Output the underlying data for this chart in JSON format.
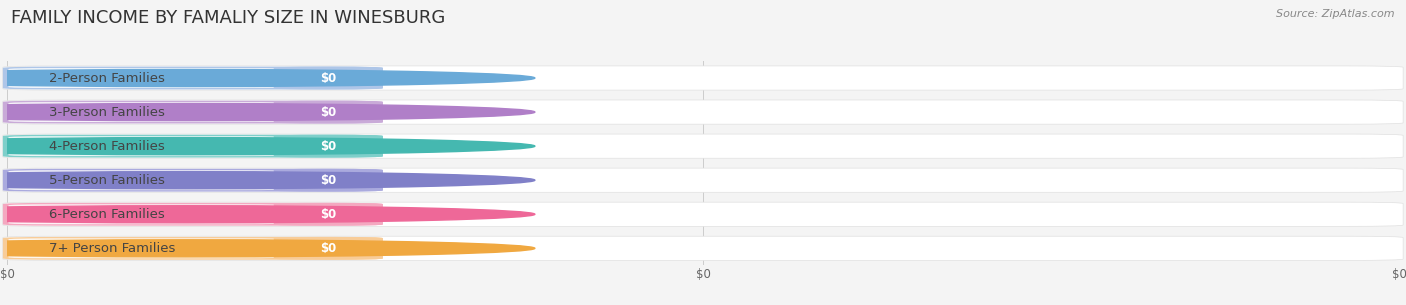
{
  "title": "FAMILY INCOME BY FAMALIY SIZE IN WINESBURG",
  "source": "Source: ZipAtlas.com",
  "categories": [
    "2-Person Families",
    "3-Person Families",
    "4-Person Families",
    "5-Person Families",
    "6-Person Families",
    "7+ Person Families"
  ],
  "values": [
    0,
    0,
    0,
    0,
    0,
    0
  ],
  "bar_colors": [
    "#aec6e8",
    "#c9aad8",
    "#7ecfca",
    "#aaaade",
    "#f4a8c0",
    "#f8cc98"
  ],
  "dot_colors": [
    "#6aaad8",
    "#b07fc8",
    "#45b8b0",
    "#8080c8",
    "#ee6898",
    "#f0a840"
  ],
  "background_color": "#f4f4f4",
  "bar_bg_color": "#ffffff",
  "bar_border_color": "#e0e0e0",
  "title_fontsize": 13,
  "label_fontsize": 9.5,
  "value_fontsize": 8.5,
  "source_fontsize": 8
}
